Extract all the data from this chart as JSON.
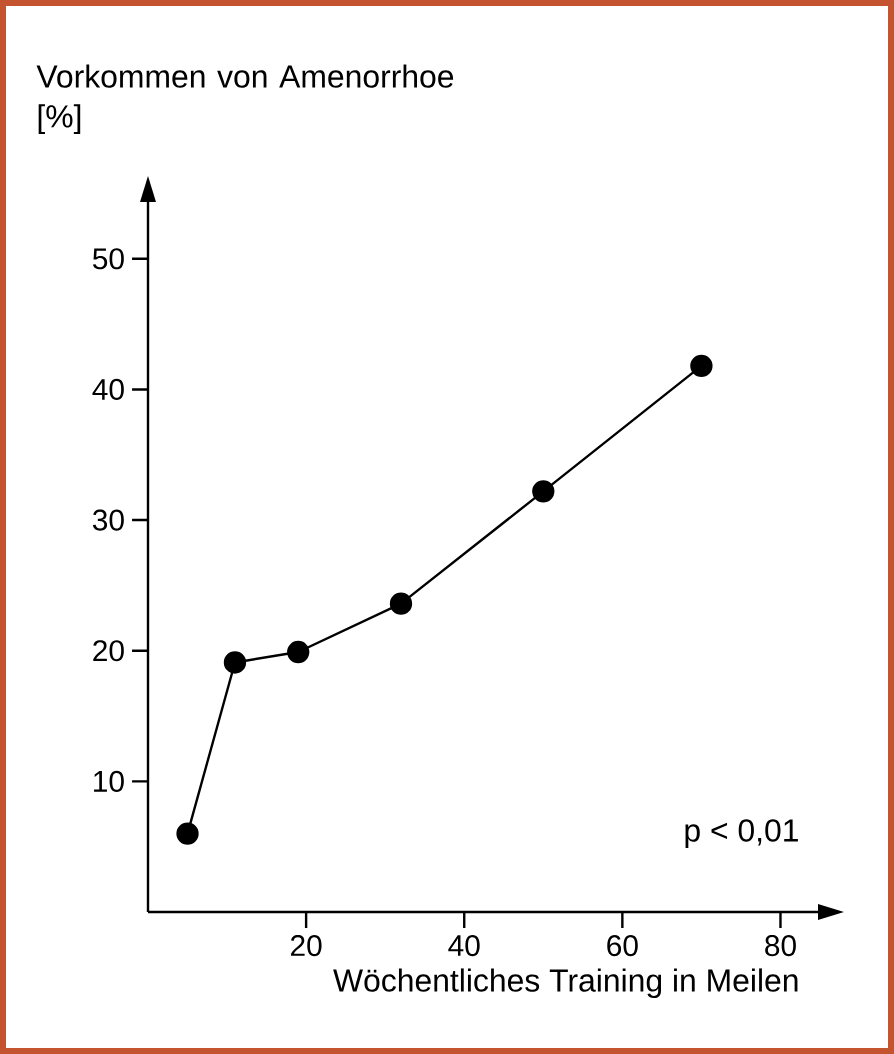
{
  "chart_data": {
    "type": "line",
    "ylabel": "Vorkommen von Amenorrhoe [%]",
    "xlabel": "Wöchentliches Training in Meilen",
    "x": [
      5,
      11,
      19,
      32,
      50,
      70
    ],
    "series": [
      {
        "color": "#000000",
        "values": [
          6,
          19.1,
          19.9,
          23.6,
          32.2,
          41.8
        ]
      }
    ],
    "xlim": [
      0,
      85
    ],
    "ylim": [
      0,
      54.5
    ],
    "xticks": [
      20,
      40,
      60,
      80
    ],
    "yticks": [
      10,
      20,
      30,
      40,
      50
    ],
    "marker": "circle",
    "line_style": "solid",
    "grid": false,
    "annotations": [
      {
        "text": "p < 0,01"
      }
    ]
  }
}
